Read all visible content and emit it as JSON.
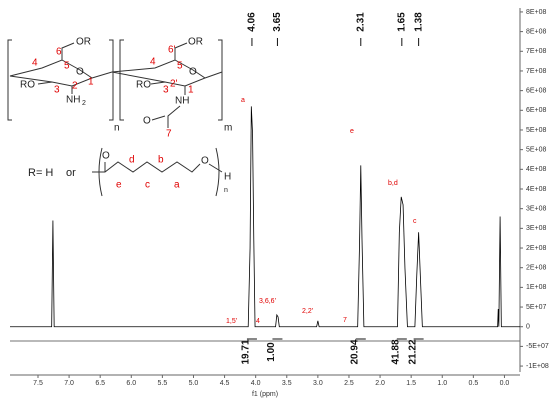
{
  "chart_data": {
    "type": "line",
    "color": "#000000",
    "xlabel": "f1 (ppm)",
    "x": [
      7.95,
      7.28,
      7.26,
      7.24,
      4.12,
      4.09,
      4.07,
      4.05,
      4.03,
      4.01,
      3.68,
      3.66,
      3.64,
      3.62,
      3.02,
      3.0,
      2.98,
      2.36,
      2.33,
      2.31,
      2.29,
      2.26,
      1.72,
      1.69,
      1.66,
      1.63,
      1.6,
      1.56,
      1.44,
      1.41,
      1.38,
      1.35,
      1.32,
      0.11,
      0.1,
      0.09,
      0.07,
      0.05,
      -0.25
    ],
    "values": [
      0,
      0,
      270000000,
      0,
      0,
      200000000,
      560000000,
      490000000,
      220000000,
      0,
      0,
      30000000,
      25000000,
      0,
      0,
      15000000,
      0,
      0,
      210000000,
      410000000,
      220000000,
      0,
      0,
      240000000,
      330000000,
      310000000,
      150000000,
      0,
      0,
      130000000,
      240000000,
      120000000,
      0,
      0,
      45000000,
      0,
      280000000,
      0,
      0
    ],
    "xlim": [
      7.95,
      -0.25
    ],
    "xticks": [
      7.5,
      {
        "value": 7,
        "label": "7.0"
      },
      6.5,
      {
        "value": 6,
        "label": "6.0"
      },
      5.5,
      {
        "value": 5,
        "label": "5.0"
      },
      4.5,
      {
        "value": 4,
        "label": "4.0"
      },
      3.5,
      {
        "value": 3,
        "label": "3.0"
      },
      2.5,
      {
        "value": 2,
        "label": "2.0"
      },
      1.5,
      {
        "value": 1,
        "label": "1.0"
      },
      0.5,
      {
        "value": 0,
        "label": "0.0"
      }
    ],
    "ylim": [
      -110000000,
      810000000
    ],
    "yticks": [
      {
        "value": 800000000,
        "label": "8E+08"
      },
      {
        "value": 750000000,
        "label": "8E+08"
      },
      {
        "value": 700000000,
        "label": "7E+08"
      },
      {
        "value": 650000000,
        "label": "7E+08"
      },
      {
        "value": 600000000,
        "label": "6E+08"
      },
      {
        "value": 550000000,
        "label": "6E+08"
      },
      {
        "value": 500000000,
        "label": "5E+08"
      },
      {
        "value": 450000000,
        "label": "5E+08"
      },
      {
        "value": 400000000,
        "label": "4E+08"
      },
      {
        "value": 350000000,
        "label": "4E+08"
      },
      {
        "value": 300000000,
        "label": "3E+08"
      },
      {
        "value": 250000000,
        "label": "3E+08"
      },
      {
        "value": 200000000,
        "label": "2E+08"
      },
      {
        "value": 150000000,
        "label": "2E+08"
      },
      {
        "value": 100000000,
        "label": "1E+08"
      },
      {
        "value": 50000000,
        "label": "5E+07"
      },
      0,
      {
        "value": -50000000,
        "label": "-5E+07"
      },
      {
        "value": -100000000,
        "label": "-1E+08"
      }
    ],
    "peaks": [
      4.06,
      3.65,
      2.31,
      1.65,
      1.38
    ],
    "integrals": [
      19.71,
      {
        "value": 1,
        "label": "1.00"
      },
      20.94,
      41.88,
      21.22
    ],
    "annotations": [
      "a",
      "e",
      "b,d",
      "c",
      "1,5'",
      "4",
      "3,6,6'",
      "2,2'",
      "7"
    ]
  },
  "structure": {
    "labels": [
      "6",
      "OR",
      "4",
      "5",
      "O",
      "1",
      "RO",
      "3",
      "2",
      "NH",
      "2",
      "n",
      "6'",
      "OR",
      "4",
      "5",
      "O",
      "RO",
      "3",
      "2'",
      "1",
      "NH",
      "O",
      "7",
      "m",
      "R= H",
      "or",
      "O",
      "d",
      "b",
      "e",
      "c",
      "a",
      "O",
      "H",
      "n"
    ]
  }
}
